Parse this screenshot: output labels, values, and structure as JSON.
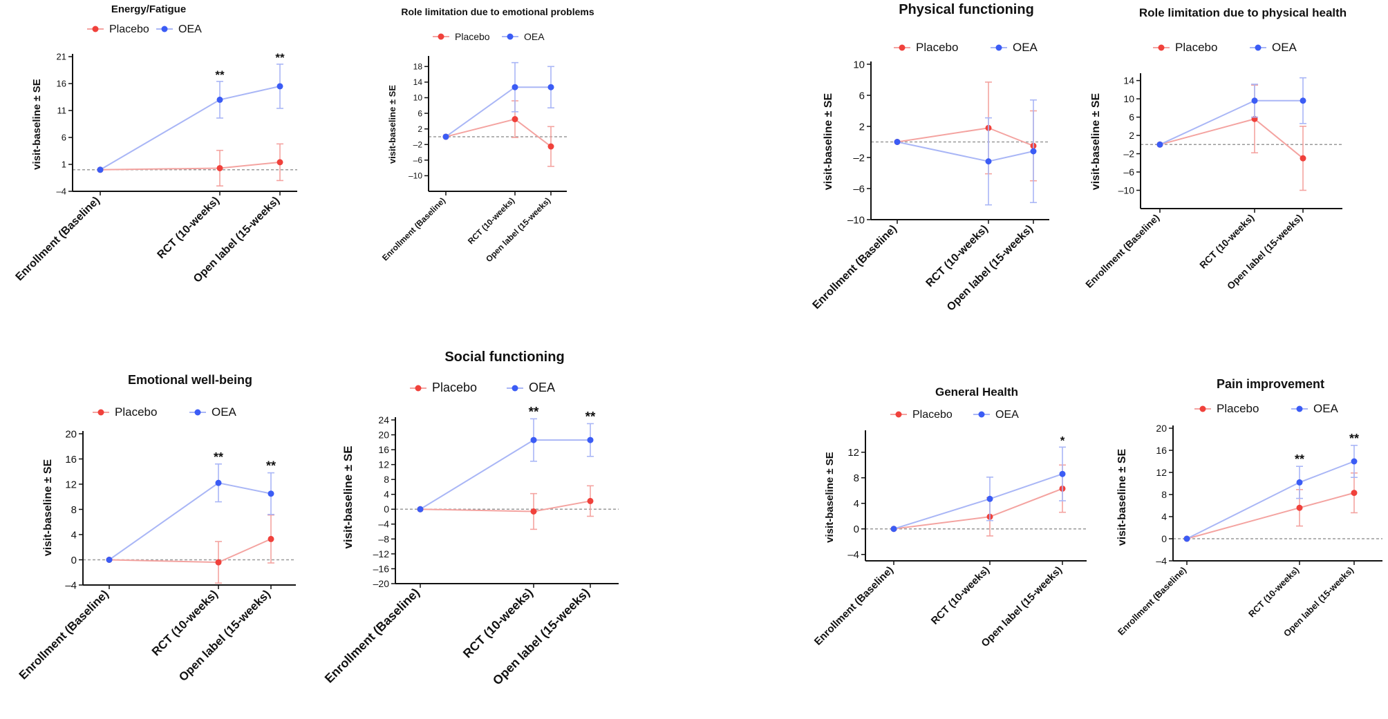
{
  "figure": {
    "x_categories": [
      "Enrollment (Baseline)",
      "RCT (10-weeks)",
      "Open label (15-weeks)"
    ],
    "y_axis_label": "visit-baseline ± SE",
    "legend": [
      "Placebo",
      "OEA"
    ],
    "colors": {
      "placebo": "#f0413b",
      "oea": "#3b5cf5",
      "placebo_line": "#f4a3a0",
      "oea_line": "#a9b6f6",
      "baseline": "#999999",
      "axis": "#111111"
    }
  },
  "chart_data": [
    {
      "type": "line",
      "title": "Energy/Fatigue",
      "categories": [
        "Enrollment (Baseline)",
        "RCT (10-weeks)",
        "Open label (15-weeks)"
      ],
      "yticks": [
        -4,
        1,
        6,
        11,
        16,
        21
      ],
      "ylim": [
        -4,
        21
      ],
      "baseline": 0,
      "series": [
        {
          "name": "Placebo",
          "values": [
            0,
            0.3,
            1.4
          ],
          "se": [
            0,
            3.3,
            3.4
          ]
        },
        {
          "name": "OEA",
          "values": [
            0,
            13,
            15.5
          ],
          "se": [
            0,
            3.4,
            4.1
          ]
        }
      ],
      "annotations": [
        "",
        "**",
        "**"
      ]
    },
    {
      "type": "line",
      "title": "Role limitation due to emotional problems",
      "categories": [
        "Enrollment (Baseline)",
        "RCT (10-weeks)",
        "Open label (15-weeks)"
      ],
      "yticks": [
        -10,
        -6,
        -2,
        2,
        6,
        10,
        14,
        18
      ],
      "ylim": [
        -14,
        20
      ],
      "baseline": 0,
      "series": [
        {
          "name": "Placebo",
          "values": [
            0,
            4.5,
            -2.5
          ],
          "se": [
            0,
            4.7,
            5.1
          ]
        },
        {
          "name": "OEA",
          "values": [
            0,
            12.7,
            12.7
          ],
          "se": [
            0,
            6.3,
            5.3
          ]
        }
      ],
      "annotations": [
        "",
        "",
        ""
      ]
    },
    {
      "type": "line",
      "title": "Physical functioning",
      "categories": [
        "Enrollment (Baseline)",
        "RCT (10-weeks)",
        "Open label (15-weeks)"
      ],
      "yticks": [
        -10,
        -6,
        -2,
        2,
        6,
        10
      ],
      "ylim": [
        -10,
        10
      ],
      "baseline": 0,
      "series": [
        {
          "name": "Placebo",
          "values": [
            0,
            1.8,
            -0.5
          ],
          "se": [
            0,
            5.9,
            4.5
          ]
        },
        {
          "name": "OEA",
          "values": [
            0,
            -2.5,
            -1.2
          ],
          "se": [
            0,
            5.6,
            6.6
          ]
        }
      ],
      "annotations": [
        "",
        "",
        ""
      ]
    },
    {
      "type": "line",
      "title": "Role limitation due to physical health",
      "categories": [
        "Enrollment (Baseline)",
        "RCT (10-weeks)",
        "Open label (15-weeks)"
      ],
      "yticks": [
        -10,
        -6,
        -2,
        2,
        6,
        10,
        14
      ],
      "ylim": [
        -14,
        15
      ],
      "baseline": 0,
      "series": [
        {
          "name": "Placebo",
          "values": [
            0,
            5.6,
            -3
          ],
          "se": [
            0,
            7.4,
            7
          ]
        },
        {
          "name": "OEA",
          "values": [
            0,
            9.6,
            9.6
          ],
          "se": [
            0,
            3.6,
            5
          ]
        }
      ],
      "annotations": [
        "",
        "",
        ""
      ]
    },
    {
      "type": "line",
      "title": "Emotional well-being",
      "categories": [
        "Enrollment (Baseline)",
        "RCT (10-weeks)",
        "Open label (15-weeks)"
      ],
      "yticks": [
        -4,
        0,
        4,
        8,
        12,
        16,
        20
      ],
      "ylim": [
        -4,
        20
      ],
      "baseline": 0,
      "series": [
        {
          "name": "Placebo",
          "values": [
            0,
            -0.4,
            3.3
          ],
          "se": [
            0,
            3.3,
            3.8
          ]
        },
        {
          "name": "OEA",
          "values": [
            0,
            12.2,
            10.5
          ],
          "se": [
            0,
            3,
            3.3
          ]
        }
      ],
      "annotations": [
        "",
        "**",
        "**"
      ]
    },
    {
      "type": "line",
      "title": "Social functioning",
      "categories": [
        "Enrollment (Baseline)",
        "RCT (10-weeks)",
        "Open label (15-weeks)"
      ],
      "yticks": [
        -20,
        -16,
        -12,
        -8,
        -4,
        0,
        4,
        8,
        12,
        16,
        20,
        24
      ],
      "ylim": [
        -20,
        24
      ],
      "baseline": 0,
      "series": [
        {
          "name": "Placebo",
          "values": [
            0,
            -0.6,
            2.2
          ],
          "se": [
            0,
            4.8,
            4.1
          ]
        },
        {
          "name": "OEA",
          "values": [
            0,
            18.6,
            18.6
          ],
          "se": [
            0,
            5.7,
            4.4
          ]
        }
      ],
      "annotations": [
        "",
        "**",
        "**"
      ]
    },
    {
      "type": "line",
      "title": "General Health",
      "categories": [
        "Enrollment (Baseline)",
        "RCT (10-weeks)",
        "Open label (15-weeks)"
      ],
      "yticks": [
        -4,
        0,
        4,
        8,
        12
      ],
      "ylim": [
        -5,
        15
      ],
      "baseline": 0,
      "series": [
        {
          "name": "Placebo",
          "values": [
            0,
            1.9,
            6.3
          ],
          "se": [
            0,
            3,
            3.7
          ]
        },
        {
          "name": "OEA",
          "values": [
            0,
            4.7,
            8.6
          ],
          "se": [
            0,
            3.4,
            4.2
          ]
        }
      ],
      "annotations": [
        "",
        "",
        "*"
      ]
    },
    {
      "type": "line",
      "title": "Pain improvement",
      "categories": [
        "Enrollment (Baseline)",
        "RCT (10-weeks)",
        "Open label (15-weeks)"
      ],
      "yticks": [
        -4,
        0,
        4,
        8,
        12,
        16,
        20
      ],
      "ylim": [
        -4,
        20
      ],
      "baseline": 0,
      "series": [
        {
          "name": "Placebo",
          "values": [
            0,
            5.6,
            8.3
          ],
          "se": [
            0,
            3.3,
            3.6
          ]
        },
        {
          "name": "OEA",
          "values": [
            0,
            10.2,
            14
          ],
          "se": [
            0,
            2.9,
            2.9
          ]
        }
      ],
      "annotations": [
        "",
        "**",
        "**"
      ]
    }
  ]
}
